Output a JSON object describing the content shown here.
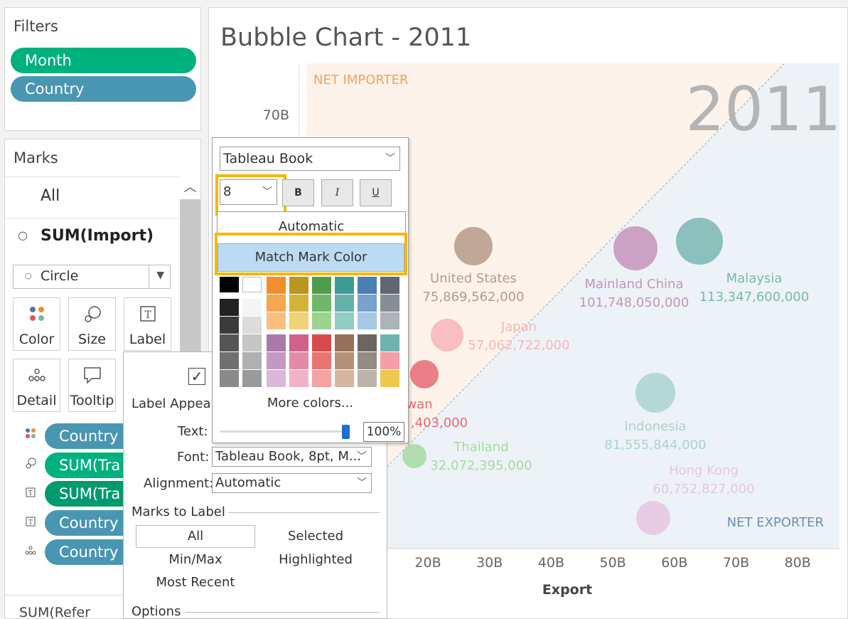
{
  "filters": {
    "title": "Filters",
    "pills": [
      "Month",
      "Country"
    ]
  },
  "marks": {
    "title": "Marks",
    "all_label": "All",
    "measure": "SUM(Import)",
    "mark_type": "Circle",
    "buttons": [
      "Color",
      "Size",
      "Label",
      "Detail",
      "Tooltip"
    ],
    "shelf": [
      "Country",
      "SUM(Tra",
      "SUM(Tra",
      "Country",
      "Country"
    ],
    "bottom_item": "SUM(Refer"
  },
  "chart": {
    "title": "Bubble Chart - 2011",
    "year_watermark": "2011",
    "region_top": "NET IMPORTER",
    "region_bottom": "NET EXPORTER",
    "y_tick": "70B",
    "x_ticks": [
      "20B",
      "30B",
      "40B",
      "50B",
      "60B",
      "70B",
      "80B"
    ],
    "x_label": "Export",
    "colors": {
      "importer_bg": "#fdf3ea",
      "exporter_bg": "#edf2f7",
      "importer_text": "#f5a25d",
      "exporter_text": "#6d8fb3"
    }
  },
  "chart_data": {
    "type": "scatter",
    "xlabel": "Export",
    "ylabel": "",
    "title": "Bubble Chart - 2011",
    "points": [
      {
        "name": "United States",
        "value": "75,869,562,000",
        "x": 27.5,
        "color": "#b59a8a"
      },
      {
        "name": "Japan",
        "value": "57,062,722,000",
        "x": 19,
        "color": "#f8b5b8"
      },
      {
        "name": "Taiwan",
        "value": "…,403,000",
        "x": 18.5,
        "color": "#e76a76"
      },
      {
        "name": "Thailand",
        "value": "32,072,395,000",
        "x": 17.5,
        "color": "#a4dba1"
      },
      {
        "name": "Mainland China",
        "value": "101,748,050,000",
        "x": 55,
        "color": "#c694bb"
      },
      {
        "name": "Malaysia",
        "value": "113,347,600,000",
        "x": 64,
        "color": "#79b7b3"
      },
      {
        "name": "Indonesia",
        "value": "81,555,844,000",
        "x": 57,
        "color": "#a9d3cf"
      },
      {
        "name": "Hong Kong",
        "value": "60,752,827,000",
        "x": 57,
        "color": "#e5c5df"
      }
    ]
  },
  "label_dialog": {
    "appearance": "Label Appeara",
    "text_label": "Text:",
    "font_label": "Font:",
    "font_value": "Tableau Book, 8pt, M...",
    "alignment_label": "Alignment:",
    "alignment_value": "Automatic",
    "marks_to_label": "Marks to Label",
    "options": [
      "All",
      "Selected",
      "Min/Max",
      "Highlighted",
      "Most Recent"
    ],
    "options_title": "Options"
  },
  "font_popup": {
    "font_family": "Tableau Book",
    "font_size": "8",
    "bold": "B",
    "italic": "I",
    "underline": "U",
    "automatic": "Automatic",
    "match_mark_color": "Match Mark Color",
    "more_colors": "More colors...",
    "opacity": "100%"
  }
}
